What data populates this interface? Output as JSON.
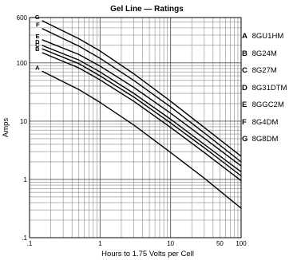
{
  "chart_data": {
    "type": "line",
    "title": "Gel Line — Ratings",
    "xlabel": "Hours to 1.75 Volts per Cell",
    "ylabel": "Amps",
    "x_scale": "log",
    "y_scale": "log",
    "xlim": [
      0.1,
      100
    ],
    "ylim": [
      0.1,
      600
    ],
    "x_ticks": [
      {
        "value": 0.1,
        "label": ".1"
      },
      {
        "value": 1,
        "label": "1"
      },
      {
        "value": 10,
        "label": "10"
      },
      {
        "value": 50,
        "label": "50"
      },
      {
        "value": 100,
        "label": "100"
      }
    ],
    "y_ticks": [
      {
        "value": 0.1,
        "label": ".1"
      },
      {
        "value": 1,
        "label": "1"
      },
      {
        "value": 10,
        "label": "10"
      },
      {
        "value": 100,
        "label": "100"
      },
      {
        "value": 600,
        "label": "600"
      }
    ],
    "grid": true,
    "legend_position": "right",
    "series": [
      {
        "name": "A",
        "label": "8GU1HM",
        "x": [
          0.15,
          0.5,
          1,
          3,
          10,
          30,
          100
        ],
        "y": [
          72,
          35,
          21,
          8.6,
          2.9,
          1.05,
          0.32
        ]
      },
      {
        "name": "B",
        "label": "8G24M",
        "x": [
          0.15,
          0.5,
          1,
          3,
          10,
          30,
          100
        ],
        "y": [
          150,
          82,
          51,
          22,
          7.8,
          2.9,
          0.95
        ]
      },
      {
        "name": "C",
        "label": "8G27M",
        "x": [
          0.15,
          0.5,
          1,
          3,
          10,
          30,
          100
        ],
        "y": [
          175,
          97,
          60,
          26,
          9.3,
          3.5,
          1.15
        ]
      },
      {
        "name": "D",
        "label": "8G31DTM",
        "x": [
          0.15,
          0.5,
          1,
          3,
          10,
          30,
          100
        ],
        "y": [
          200,
          112,
          70,
          30,
          10.8,
          4.0,
          1.35
        ]
      },
      {
        "name": "E",
        "label": "8GGC2M",
        "x": [
          0.15,
          0.5,
          1,
          3,
          10,
          30,
          100
        ],
        "y": [
          250,
          140,
          88,
          38,
          13.7,
          5.1,
          1.7
        ]
      },
      {
        "name": "F",
        "label": "8G4DM",
        "x": [
          0.15,
          0.5,
          1,
          3,
          10,
          30,
          100
        ],
        "y": [
          390,
          195,
          120,
          50,
          17.5,
          6.3,
          2.0
        ]
      },
      {
        "name": "G",
        "label": "8G8DM",
        "x": [
          0.15,
          0.5,
          1,
          3,
          10,
          30,
          100
        ],
        "y": [
          530,
          260,
          160,
          65,
          22,
          7.8,
          2.5
        ]
      }
    ]
  }
}
